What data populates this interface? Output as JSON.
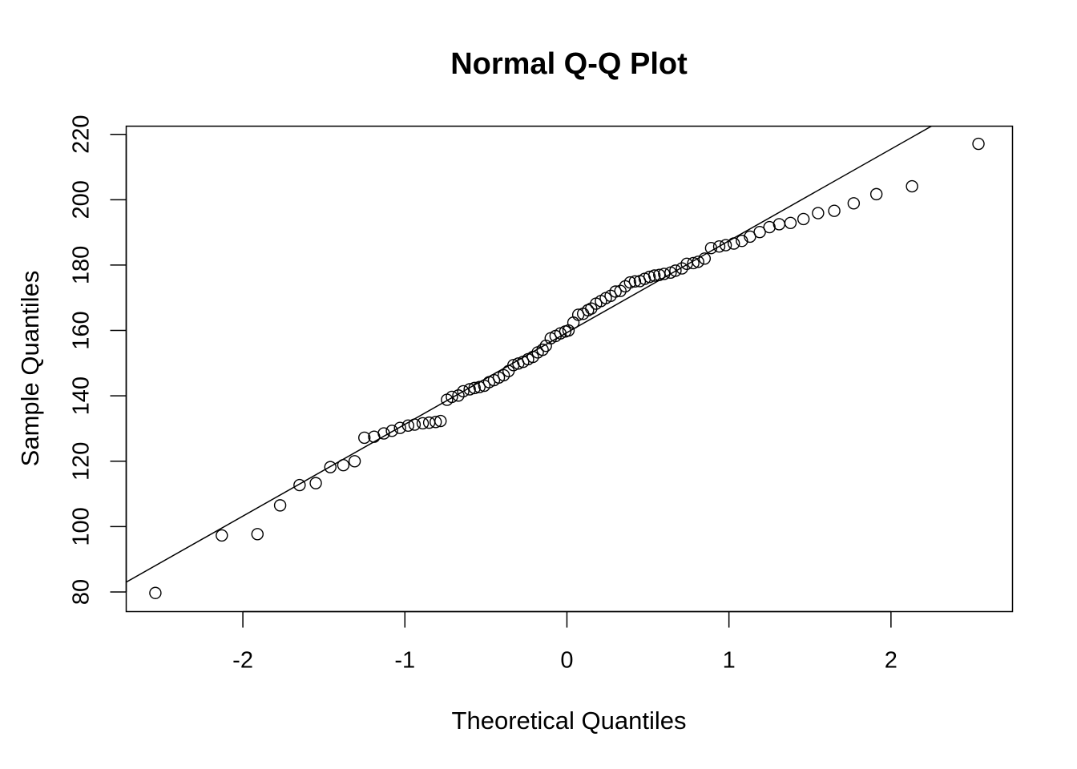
{
  "chart_data": {
    "type": "scatter",
    "title": "Normal Q-Q Plot",
    "xlabel": "Theoretical Quantiles",
    "ylabel": "Sample Quantiles",
    "xlim": [
      -2.72,
      2.75
    ],
    "ylim": [
      74,
      222.5
    ],
    "x_ticks": [
      -2,
      -1,
      0,
      1,
      2
    ],
    "x_tick_labels": [
      "-2",
      "-1",
      "0",
      "1",
      "2"
    ],
    "y_ticks": [
      80,
      100,
      120,
      140,
      160,
      180,
      200,
      220
    ],
    "y_tick_labels": [
      "80",
      "100",
      "120",
      "140",
      "160",
      "180",
      "200",
      "220"
    ],
    "grid": false,
    "marker": "open-circle",
    "reference_line": {
      "from": [
        -2.72,
        83
      ],
      "to": [
        2.25,
        222.5
      ]
    },
    "points": [
      [
        -2.54,
        79.7
      ],
      [
        -2.13,
        97.3
      ],
      [
        -1.91,
        97.7
      ],
      [
        -1.77,
        106.5
      ],
      [
        -1.65,
        112.7
      ],
      [
        -1.55,
        113.3
      ],
      [
        -1.46,
        118.2
      ],
      [
        -1.38,
        118.8
      ],
      [
        -1.31,
        120.0
      ],
      [
        -1.25,
        127.2
      ],
      [
        -1.19,
        127.5
      ],
      [
        -1.13,
        128.5
      ],
      [
        -1.08,
        129.3
      ],
      [
        -1.03,
        130.2
      ],
      [
        -0.98,
        130.9
      ],
      [
        -0.94,
        131.2
      ],
      [
        -0.89,
        131.6
      ],
      [
        -0.85,
        131.8
      ],
      [
        -0.81,
        132.0
      ],
      [
        -0.78,
        132.3
      ],
      [
        -0.74,
        138.8
      ],
      [
        -0.71,
        139.7
      ],
      [
        -0.67,
        140.1
      ],
      [
        -0.64,
        141.4
      ],
      [
        -0.6,
        142.0
      ],
      [
        -0.57,
        142.4
      ],
      [
        -0.54,
        142.7
      ],
      [
        -0.51,
        143.1
      ],
      [
        -0.48,
        144.2
      ],
      [
        -0.45,
        144.8
      ],
      [
        -0.42,
        145.6
      ],
      [
        -0.39,
        146.3
      ],
      [
        -0.36,
        147.6
      ],
      [
        -0.33,
        149.4
      ],
      [
        -0.3,
        149.9
      ],
      [
        -0.27,
        150.4
      ],
      [
        -0.24,
        151.2
      ],
      [
        -0.21,
        151.9
      ],
      [
        -0.18,
        153.3
      ],
      [
        -0.15,
        154.1
      ],
      [
        -0.13,
        155.3
      ],
      [
        -0.1,
        157.6
      ],
      [
        -0.07,
        158.3
      ],
      [
        -0.04,
        159.1
      ],
      [
        -0.01,
        159.7
      ],
      [
        0.01,
        160.0
      ],
      [
        0.04,
        162.4
      ],
      [
        0.07,
        164.8
      ],
      [
        0.1,
        165.1
      ],
      [
        0.13,
        166.2
      ],
      [
        0.15,
        166.7
      ],
      [
        0.18,
        168.2
      ],
      [
        0.21,
        169.0
      ],
      [
        0.24,
        169.9
      ],
      [
        0.27,
        170.6
      ],
      [
        0.3,
        171.9
      ],
      [
        0.33,
        172.1
      ],
      [
        0.36,
        173.5
      ],
      [
        0.39,
        174.7
      ],
      [
        0.42,
        175.0
      ],
      [
        0.45,
        175.1
      ],
      [
        0.48,
        175.8
      ],
      [
        0.51,
        176.4
      ],
      [
        0.54,
        176.8
      ],
      [
        0.57,
        177.0
      ],
      [
        0.6,
        177.3
      ],
      [
        0.64,
        177.7
      ],
      [
        0.67,
        178.3
      ],
      [
        0.71,
        179.0
      ],
      [
        0.74,
        180.4
      ],
      [
        0.78,
        180.6
      ],
      [
        0.81,
        181.0
      ],
      [
        0.85,
        182.0
      ],
      [
        0.89,
        185.2
      ],
      [
        0.94,
        185.7
      ],
      [
        0.98,
        186.1
      ],
      [
        1.03,
        186.6
      ],
      [
        1.08,
        187.4
      ],
      [
        1.13,
        188.7
      ],
      [
        1.19,
        190.1
      ],
      [
        1.25,
        191.6
      ],
      [
        1.31,
        192.5
      ],
      [
        1.38,
        192.9
      ],
      [
        1.46,
        194.1
      ],
      [
        1.55,
        195.9
      ],
      [
        1.65,
        196.6
      ],
      [
        1.77,
        198.9
      ],
      [
        1.91,
        201.7
      ],
      [
        2.13,
        204.1
      ],
      [
        2.54,
        217.1
      ]
    ]
  }
}
